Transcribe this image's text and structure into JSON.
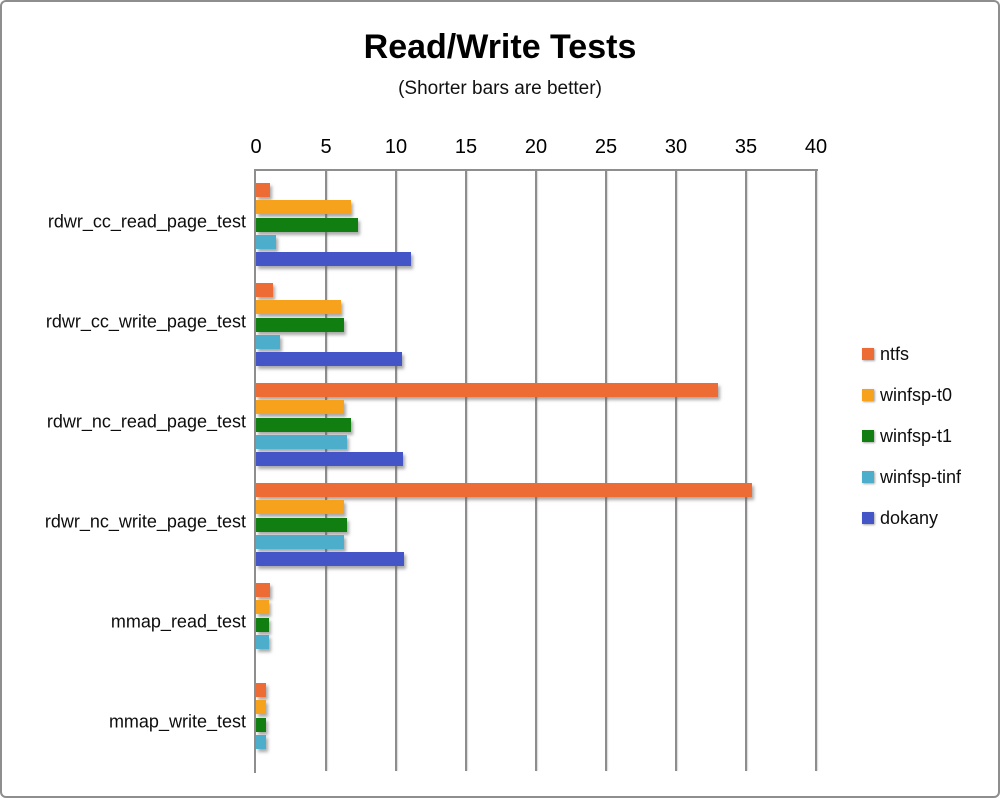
{
  "title": "Read/Write Tests",
  "subtitle": "(Shorter bars are better)",
  "chart_data": {
    "type": "bar",
    "orientation": "horizontal",
    "title": "Read/Write Tests",
    "subtitle": "(Shorter bars are better)",
    "categories": [
      "rdwr_cc_read_page_test",
      "rdwr_cc_write_page_test",
      "rdwr_nc_read_page_test",
      "rdwr_nc_write_page_test",
      "mmap_read_test",
      "mmap_write_test"
    ],
    "series": [
      {
        "name": "ntfs",
        "color": "#ED6B35",
        "values": [
          1.0,
          1.2,
          33.0,
          35.4,
          1.0,
          0.7
        ]
      },
      {
        "name": "winfsp-t0",
        "color": "#F6A21D",
        "values": [
          6.8,
          6.1,
          6.3,
          6.3,
          0.9,
          0.7
        ]
      },
      {
        "name": "winfsp-t1",
        "color": "#117E11",
        "values": [
          7.3,
          6.3,
          6.8,
          6.5,
          0.9,
          0.7
        ]
      },
      {
        "name": "winfsp-tinf",
        "color": "#4DAECC",
        "values": [
          1.4,
          1.7,
          6.5,
          6.3,
          0.9,
          0.7
        ]
      },
      {
        "name": "dokany",
        "color": "#4355C7",
        "values": [
          11.1,
          10.4,
          10.5,
          10.6,
          null,
          null
        ]
      }
    ],
    "xlim": [
      0,
      40
    ],
    "xticks": [
      0,
      5,
      10,
      15,
      20,
      25,
      30,
      35,
      40
    ],
    "grid": true,
    "legend_position": "right",
    "axis_color": "#8e8e8e"
  }
}
